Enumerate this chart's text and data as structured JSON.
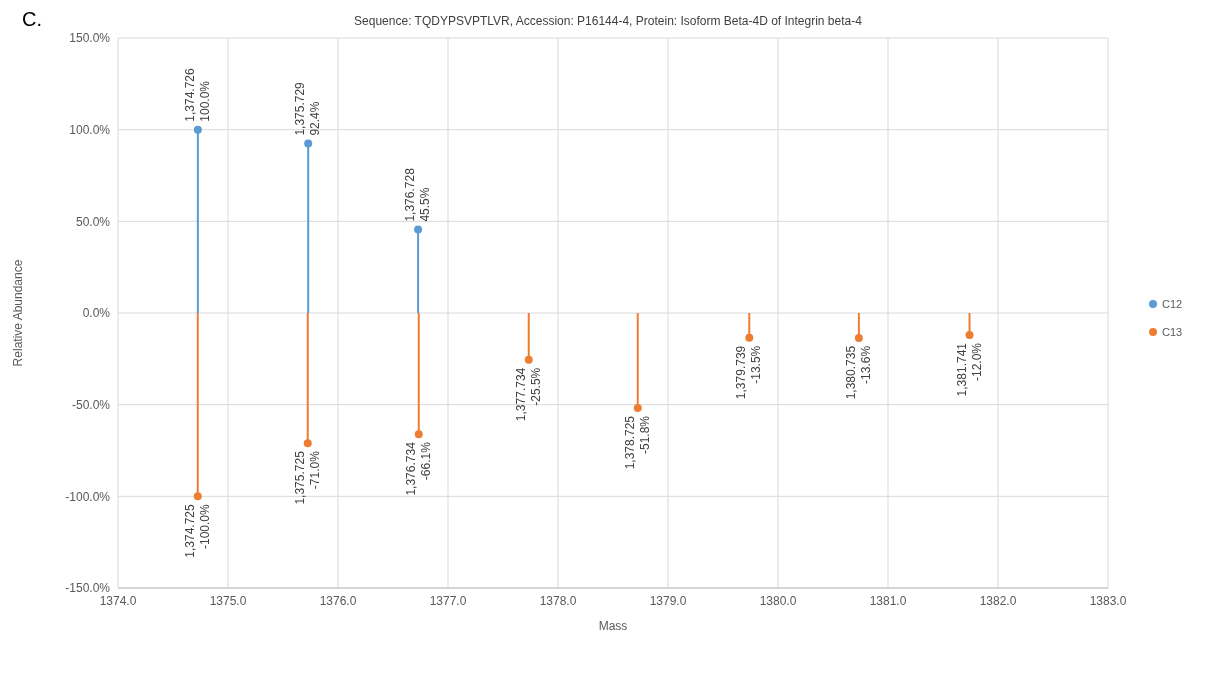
{
  "chart_data": {
    "type": "lollipop",
    "title": "Sequence: TQDYPSVPTLVR, Accession: P16144-4, Protein: Isoform Beta-4D of Integrin beta-4",
    "xlabel": "Mass",
    "ylabel": "Relative Abundance",
    "annotations": [
      "C."
    ],
    "series": [
      {
        "name": "C12",
        "color": "#5b9bd5",
        "x": [
          1374.726,
          1375.729,
          1376.728
        ],
        "values": [
          100.0,
          92.4,
          45.5
        ],
        "value_labels": [
          "1,374.726 100.0%",
          "1,375.729 92.4%",
          "1,376.728 45.5%"
        ]
      },
      {
        "name": "C13",
        "color": "#ed7d31",
        "x": [
          1374.725,
          1375.725,
          1376.734,
          1377.734,
          1378.725,
          1379.739,
          1380.735,
          1381.741
        ],
        "values": [
          -100.0,
          -71.0,
          -66.1,
          -25.5,
          -51.8,
          -13.5,
          -13.6,
          -12.0
        ],
        "value_labels": [
          "1,374.725 -100.0%",
          "1,375.725 -71.0%",
          "1,376.734 -66.1%",
          "1,377.734 -25.5%",
          "1,378.725 -51.8%",
          "1,379.739 -13.5%",
          "1,380.735 -13.6%",
          "1,381.741 -12.0%"
        ]
      }
    ],
    "xlim": [
      1374,
      1383
    ],
    "xticks": [
      {
        "value": 1374,
        "label": "1374.0"
      },
      {
        "value": 1375,
        "label": "1375.0"
      },
      {
        "value": 1376,
        "label": "1376.0"
      },
      {
        "value": 1377,
        "label": "1377.0"
      },
      {
        "value": 1378,
        "label": "1378.0"
      },
      {
        "value": 1379,
        "label": "1379.0"
      },
      {
        "value": 1380,
        "label": "1380.0"
      },
      {
        "value": 1381,
        "label": "1381.0"
      },
      {
        "value": 1382,
        "label": "1382.0"
      },
      {
        "value": 1383,
        "label": "1383.0"
      }
    ],
    "ylim": [
      -150,
      150
    ],
    "yticks": [
      {
        "value": -150,
        "label": "-150.0%"
      },
      {
        "value": -100,
        "label": "-100.0%"
      },
      {
        "value": -50,
        "label": "-50.0%"
      },
      {
        "value": 0,
        "label": "0.0%"
      },
      {
        "value": 50,
        "label": "50.0%"
      },
      {
        "value": 100,
        "label": "100.0%"
      },
      {
        "value": 150,
        "label": "150.0%"
      }
    ],
    "grid": true,
    "legend": "right",
    "marker": "circle"
  }
}
